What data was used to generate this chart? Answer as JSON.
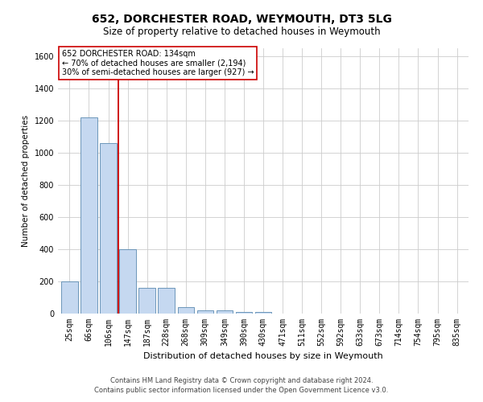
{
  "title": "652, DORCHESTER ROAD, WEYMOUTH, DT3 5LG",
  "subtitle": "Size of property relative to detached houses in Weymouth",
  "xlabel": "Distribution of detached houses by size in Weymouth",
  "ylabel": "Number of detached properties",
  "categories": [
    "25sqm",
    "66sqm",
    "106sqm",
    "147sqm",
    "187sqm",
    "228sqm",
    "268sqm",
    "309sqm",
    "349sqm",
    "390sqm",
    "430sqm",
    "471sqm",
    "511sqm",
    "552sqm",
    "592sqm",
    "633sqm",
    "673sqm",
    "714sqm",
    "754sqm",
    "795sqm",
    "835sqm"
  ],
  "values": [
    200,
    1220,
    1060,
    400,
    160,
    160,
    40,
    20,
    20,
    10,
    10,
    0,
    0,
    0,
    0,
    0,
    0,
    0,
    0,
    0,
    0
  ],
  "bar_color": "#c5d8f0",
  "bar_edge_color": "#5a8ab0",
  "vline_x": 2.5,
  "vline_color": "#cc0000",
  "ylim": [
    0,
    1650
  ],
  "yticks": [
    0,
    200,
    400,
    600,
    800,
    1000,
    1200,
    1400,
    1600
  ],
  "annotation_text": "652 DORCHESTER ROAD: 134sqm\n← 70% of detached houses are smaller (2,194)\n30% of semi-detached houses are larger (927) →",
  "annotation_box_color": "#ffffff",
  "annotation_box_edge": "#cc0000",
  "footer1": "Contains HM Land Registry data © Crown copyright and database right 2024.",
  "footer2": "Contains public sector information licensed under the Open Government Licence v3.0.",
  "background_color": "#ffffff",
  "grid_color": "#cccccc",
  "title_fontsize": 10,
  "subtitle_fontsize": 8.5,
  "ylabel_fontsize": 7.5,
  "xlabel_fontsize": 8,
  "tick_fontsize": 7,
  "footer_fontsize": 6,
  "ann_fontsize": 7
}
